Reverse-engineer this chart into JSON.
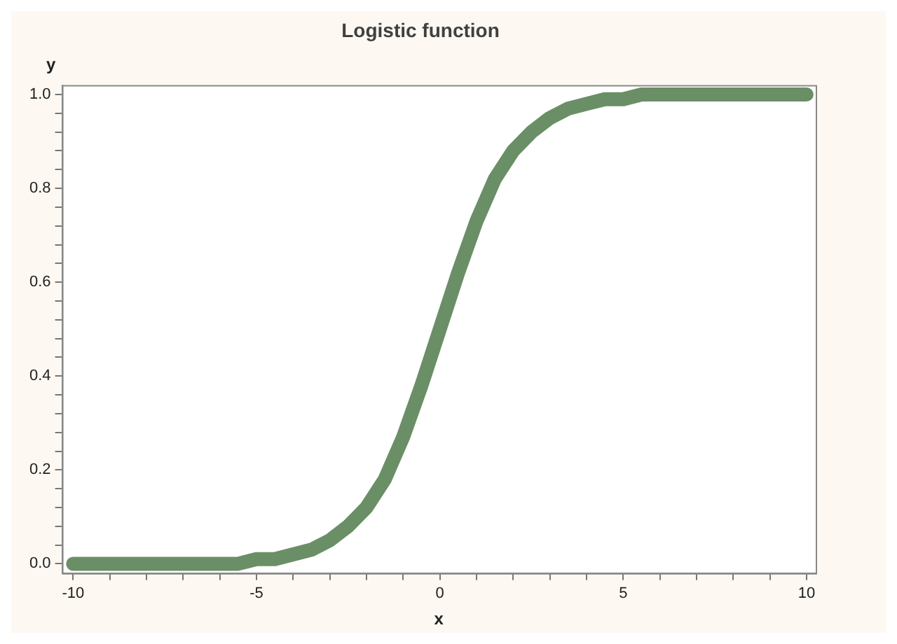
{
  "chart_data": {
    "type": "line",
    "title": "Logistic function",
    "xlabel": "x",
    "ylabel": "y",
    "x": [
      -10,
      -9.5,
      -9,
      -8.5,
      -8,
      -7.5,
      -7,
      -6.5,
      -6,
      -5.5,
      -5,
      -4.5,
      -4,
      -3.5,
      -3,
      -2.5,
      -2,
      -1.5,
      -1,
      -0.5,
      0,
      0.5,
      1,
      1.5,
      2,
      2.5,
      3,
      3.5,
      4,
      4.5,
      5,
      5.5,
      6,
      6.5,
      7,
      7.5,
      8,
      8.5,
      9,
      9.5,
      10
    ],
    "series": [
      {
        "color": "#6a8f66",
        "values": [
          0,
          0,
          0,
          0,
          0,
          0,
          0,
          0,
          0,
          0,
          0.01,
          0.01,
          0.02,
          0.03,
          0.05,
          0.08,
          0.12,
          0.18,
          0.27,
          0.38,
          0.5,
          0.62,
          0.73,
          0.82,
          0.88,
          0.92,
          0.95,
          0.97,
          0.98,
          0.99,
          0.99,
          1,
          1,
          1,
          1,
          1,
          1,
          1,
          1,
          1,
          1
        ]
      }
    ],
    "xlim": [
      -10.3,
      10.25
    ],
    "ylim": [
      -0.02,
      1.02
    ],
    "xticks": [
      -10,
      {
        "value": -9,
        "label": null
      },
      {
        "value": -8,
        "label": null
      },
      {
        "value": -7,
        "label": null
      },
      {
        "value": -6,
        "label": null
      },
      -5,
      {
        "value": -4,
        "label": null
      },
      {
        "value": -3,
        "label": null
      },
      {
        "value": -2,
        "label": null
      },
      {
        "value": -1,
        "label": null
      },
      0,
      {
        "value": 1,
        "label": null
      },
      {
        "value": 2,
        "label": null
      },
      {
        "value": 3,
        "label": null
      },
      {
        "value": 4,
        "label": null
      },
      5,
      {
        "value": 6,
        "label": null
      },
      {
        "value": 7,
        "label": null
      },
      {
        "value": 8,
        "label": null
      },
      {
        "value": 9,
        "label": null
      },
      10
    ],
    "yticks": [
      {
        "value": 0,
        "label": "0.0"
      },
      {
        "value": 0.04,
        "label": null
      },
      {
        "value": 0.08,
        "label": null
      },
      {
        "value": 0.12,
        "label": null
      },
      {
        "value": 0.16,
        "label": null
      },
      0.2,
      {
        "value": 0.24,
        "label": null
      },
      {
        "value": 0.28,
        "label": null
      },
      {
        "value": 0.32,
        "label": null
      },
      {
        "value": 0.36,
        "label": null
      },
      0.4,
      {
        "value": 0.44,
        "label": null
      },
      {
        "value": 0.48,
        "label": null
      },
      {
        "value": 0.52,
        "label": null
      },
      {
        "value": 0.56,
        "label": null
      },
      0.6,
      {
        "value": 0.64,
        "label": null
      },
      {
        "value": 0.68,
        "label": null
      },
      {
        "value": 0.72,
        "label": null
      },
      {
        "value": 0.76,
        "label": null
      },
      0.8,
      {
        "value": 0.84,
        "label": null
      },
      {
        "value": 0.88,
        "label": null
      },
      {
        "value": 0.92,
        "label": null
      },
      {
        "value": 0.96,
        "label": null
      },
      {
        "value": 1,
        "label": "1.0"
      }
    ],
    "line_style": "solid"
  }
}
